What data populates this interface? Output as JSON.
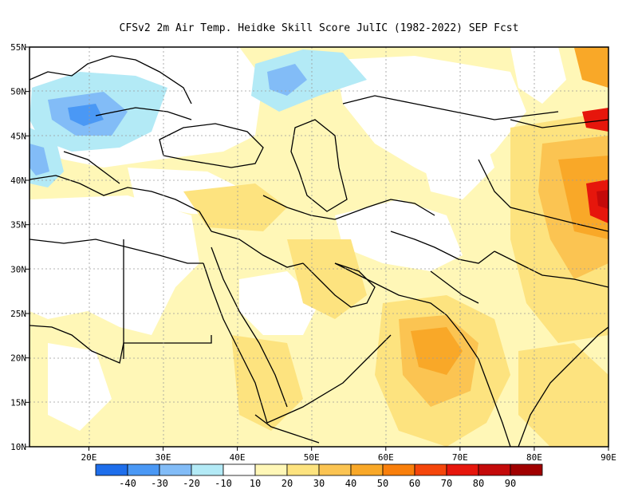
{
  "title": "CFSv2  2m Air Temp. Heidke Skill Score JulIC (1982-2022) SEP Fcst",
  "map": {
    "lon_range": [
      12,
      90
    ],
    "lat_range": [
      10,
      55
    ],
    "x_ticks": [
      {
        "value": 20,
        "label": "20E"
      },
      {
        "value": 30,
        "label": "30E"
      },
      {
        "value": 40,
        "label": "40E"
      },
      {
        "value": 50,
        "label": "50E"
      },
      {
        "value": 60,
        "label": "60E"
      },
      {
        "value": 70,
        "label": "70E"
      },
      {
        "value": 80,
        "label": "80E"
      },
      {
        "value": 90,
        "label": "90E"
      }
    ],
    "y_ticks": [
      {
        "value": 55,
        "label": "55N"
      },
      {
        "value": 50,
        "label": "50N"
      },
      {
        "value": 45,
        "label": "45N"
      },
      {
        "value": 40,
        "label": "40N"
      },
      {
        "value": 35,
        "label": "35N"
      },
      {
        "value": 30,
        "label": "30N"
      },
      {
        "value": 25,
        "label": "25N"
      },
      {
        "value": 20,
        "label": "20N"
      },
      {
        "value": 15,
        "label": "15N"
      },
      {
        "value": 10,
        "label": "10N"
      }
    ],
    "grid": true
  },
  "colorbar": {
    "colors": [
      "#1e6eeb",
      "#4a98f5",
      "#82bcf7",
      "#b3eaf6",
      "#ffffff",
      "#fff7b7",
      "#fde37f",
      "#fbc452",
      "#f9a828",
      "#f97f0b",
      "#f5460b",
      "#e6160c",
      "#c40a0a",
      "#a00000"
    ],
    "labels": [
      "-40",
      "-30",
      "-20",
      "-10",
      "10",
      "20",
      "30",
      "40",
      "50",
      "60",
      "70",
      "80",
      "90"
    ]
  },
  "palette": {
    "white": "#ffffff",
    "lightyellow": "#fff7b7",
    "yellow": "#fde37f",
    "lightorange": "#fbc452",
    "orange": "#f9a828",
    "darkorange": "#f97f0b",
    "red": "#e6160c",
    "darkred": "#c40a0a",
    "lightblue": "#b3eaf6",
    "blue": "#82bcf7",
    "midblue": "#4a98f5",
    "deepblue": "#1e6eeb"
  }
}
